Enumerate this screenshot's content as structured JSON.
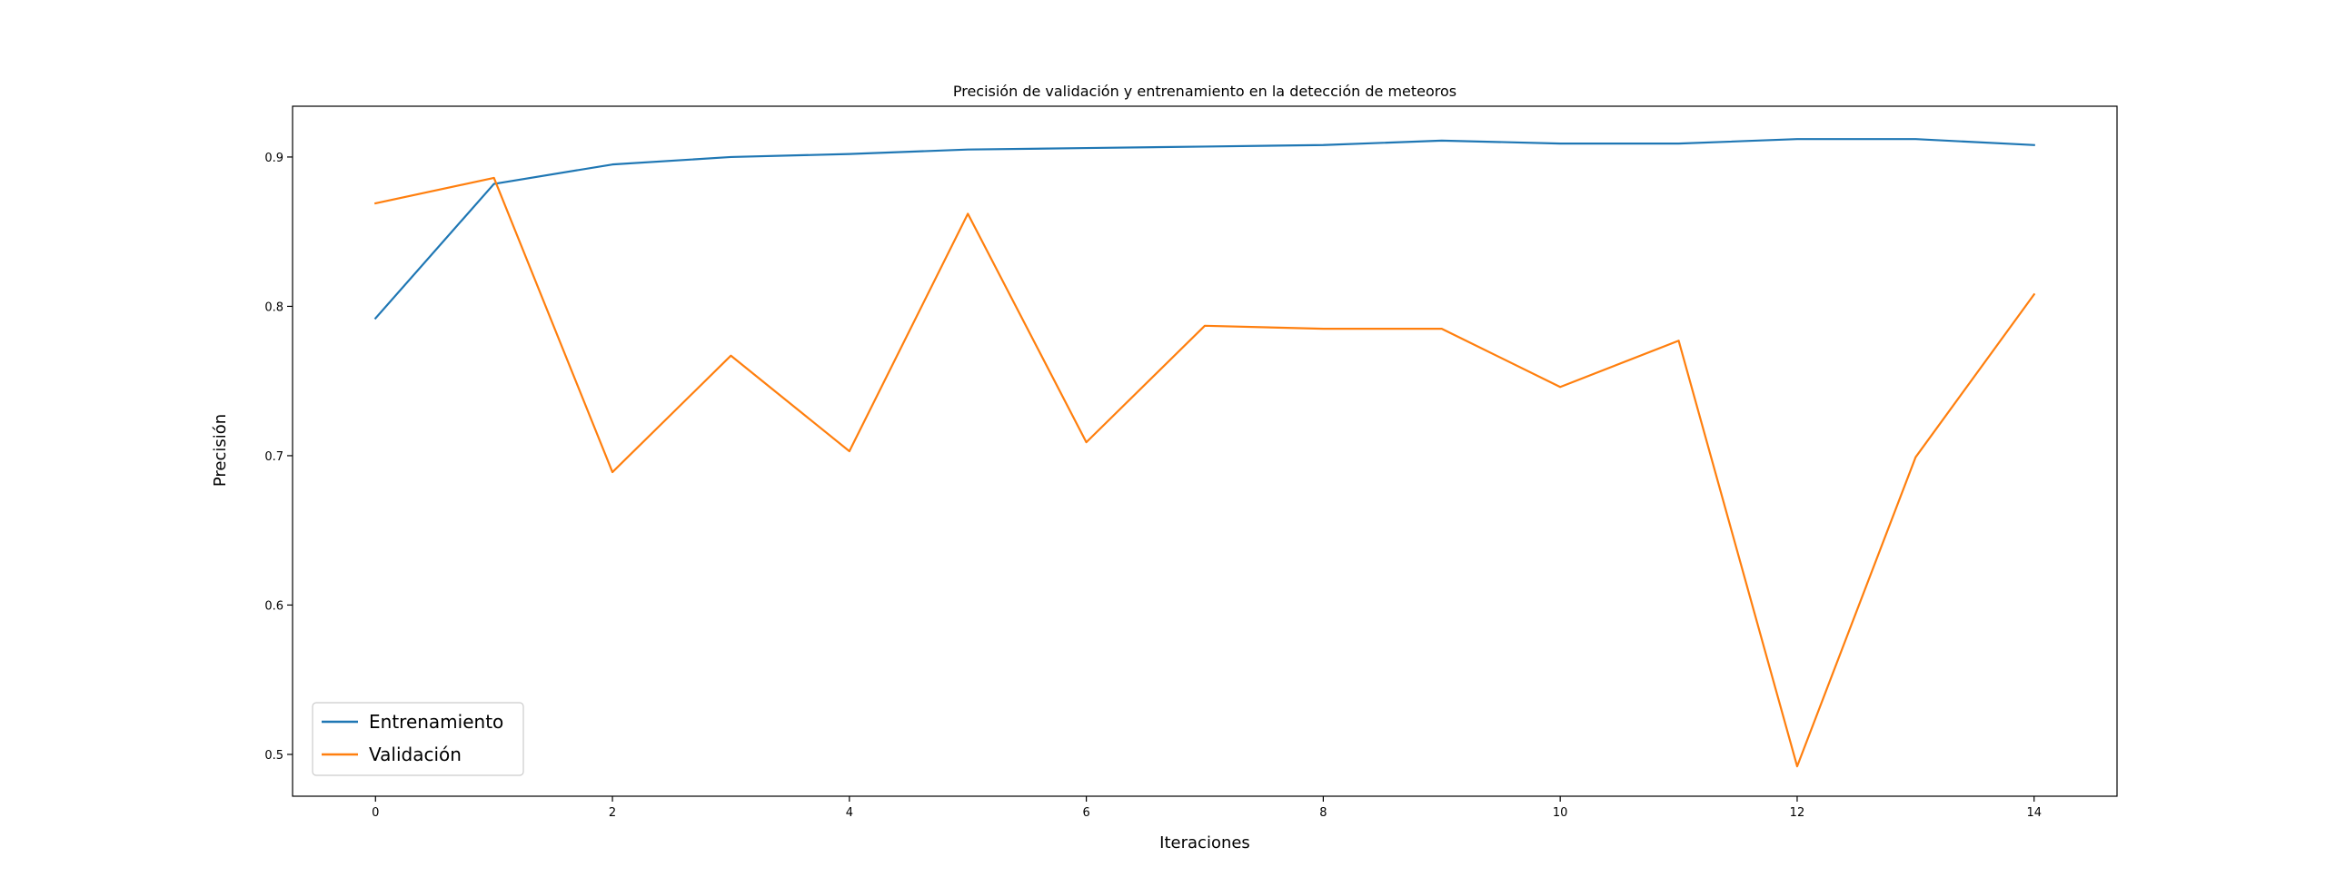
{
  "chart_data": {
    "type": "line",
    "title": "Precisión de validación y entrenamiento en la detección de meteoros",
    "xlabel": "Iteraciones",
    "ylabel": "Precisión",
    "x": [
      0,
      1,
      2,
      3,
      4,
      5,
      6,
      7,
      8,
      9,
      10,
      11,
      12,
      13,
      14
    ],
    "xlim": [
      -0.7,
      14.7
    ],
    "ylim": [
      0.472,
      0.934
    ],
    "xticks": [
      0,
      2,
      4,
      6,
      8,
      10,
      12,
      14
    ],
    "yticks": [
      0.5,
      0.6,
      0.7,
      0.8,
      0.9
    ],
    "grid": false,
    "legend_position": "lower-left",
    "series": [
      {
        "name": "Entrenamiento",
        "color": "#1f77b4",
        "values": [
          0.792,
          0.882,
          0.895,
          0.9,
          0.902,
          0.905,
          0.906,
          0.907,
          0.908,
          0.911,
          0.909,
          0.909,
          0.912,
          0.912,
          0.908
        ]
      },
      {
        "name": "Validación",
        "color": "#ff7f0e",
        "values": [
          0.869,
          0.886,
          0.689,
          0.767,
          0.703,
          0.862,
          0.709,
          0.787,
          0.785,
          0.785,
          0.746,
          0.777,
          0.492,
          0.699,
          0.808
        ]
      }
    ]
  }
}
